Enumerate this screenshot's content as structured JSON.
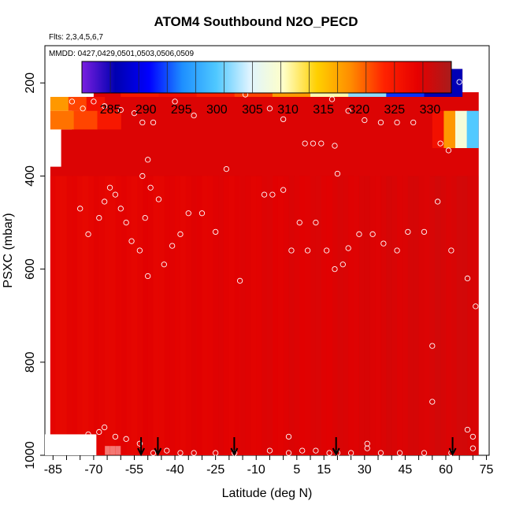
{
  "chart_data": {
    "type": "heatmap",
    "title": "ATOM4 Southbound N2O_PECD",
    "subtitle_flights": "Flts: 2,3,4,5,6,7",
    "subtitle_dates": "MMDD: 0427,0429,0501,0503,0506,0509",
    "xlabel": "Latitude (deg N)",
    "ylabel": "PSXC (mbar)",
    "xlim": [
      -88,
      76
    ],
    "ylim": [
      1000,
      120
    ],
    "x_ticks": [
      -85,
      -70,
      -55,
      -40,
      -25,
      -10,
      5,
      15,
      30,
      45,
      60,
      75
    ],
    "y_ticks": [
      200,
      400,
      600,
      800,
      1000
    ],
    "colorbar": {
      "range": [
        281,
        333
      ],
      "ticks": [
        285,
        290,
        295,
        300,
        305,
        310,
        315,
        320,
        325,
        330
      ],
      "colors": [
        "#7a1fe0",
        "#0000b0",
        "#0000ff",
        "#1e90ff",
        "#4fc8ff",
        "#dff4ff",
        "#ffffc8",
        "#ffd000",
        "#ff8c00",
        "#ff2200",
        "#e60000",
        "#a81c1c"
      ]
    },
    "column_shading": {
      "note": "each column: [lat_left, lat_right, pressure_top, pressure_bottom]",
      "columns": [
        [
          -86,
          -82,
          380,
          1000
        ],
        [
          -82,
          -78,
          300,
          1000
        ],
        [
          -78,
          -74,
          260,
          1000
        ],
        [
          -74,
          -70,
          230,
          1000
        ],
        [
          -70,
          -66,
          200,
          1000
        ],
        [
          -66,
          -60,
          190,
          980
        ],
        [
          -60,
          -40,
          170,
          1000
        ],
        [
          -40,
          0,
          170,
          1000
        ],
        [
          0,
          40,
          170,
          1000
        ],
        [
          40,
          66,
          170,
          1000
        ],
        [
          66,
          72,
          220,
          1000
        ]
      ]
    },
    "upper_levels": {
      "note": "gradient bands near top; values in ppb",
      "band_200": {
        "p": [
          170,
          230
        ],
        "lat_left": -60,
        "lat_right": 66,
        "values": [
          325,
          326,
          324,
          322,
          318,
          310,
          302,
          292,
          286
        ]
      },
      "band_left_top": {
        "p": [
          230,
          260
        ],
        "lat_left": -86,
        "lat_right": -66,
        "values": [
          318,
          322,
          326
        ]
      },
      "band_left_mid": {
        "p": [
          260,
          300
        ],
        "lat_left": -86,
        "lat_right": -60,
        "values": [
          320,
          322,
          325
        ]
      },
      "band_right": {
        "p": [
          260,
          340
        ],
        "lat_left": 55,
        "lat_right": 72,
        "values": [
          326,
          318,
          308,
          300
        ]
      }
    },
    "bulk_value": 329,
    "samples": [
      [
        -61,
        205
      ],
      [
        -55,
        198
      ],
      [
        -47,
        205
      ],
      [
        -40,
        240
      ],
      [
        -33,
        270
      ],
      [
        -22,
        210
      ],
      [
        -17,
        210
      ],
      [
        -14,
        225
      ],
      [
        -5,
        255
      ],
      [
        0,
        278
      ],
      [
        8,
        330
      ],
      [
        11,
        330
      ],
      [
        14,
        330
      ],
      [
        18,
        235
      ],
      [
        24,
        260
      ],
      [
        30,
        280
      ],
      [
        36,
        285
      ],
      [
        42,
        285
      ],
      [
        48,
        285
      ],
      [
        58,
        330
      ],
      [
        61,
        345
      ],
      [
        65,
        198
      ],
      [
        -78,
        240
      ],
      [
        -74,
        255
      ],
      [
        -70,
        240
      ],
      [
        -66,
        250
      ],
      [
        -60,
        258
      ],
      [
        -55,
        265
      ],
      [
        -52,
        285
      ],
      [
        -48,
        285
      ],
      [
        -75,
        470
      ],
      [
        -72,
        525
      ],
      [
        -68,
        490
      ],
      [
        -66,
        455
      ],
      [
        -64,
        425
      ],
      [
        -62,
        440
      ],
      [
        -60,
        470
      ],
      [
        -58,
        500
      ],
      [
        -56,
        540
      ],
      [
        -53,
        560
      ],
      [
        -51,
        490
      ],
      [
        -49,
        425
      ],
      [
        -46,
        450
      ],
      [
        -44,
        590
      ],
      [
        -41,
        550
      ],
      [
        -38,
        525
      ],
      [
        -35,
        480
      ],
      [
        -30,
        480
      ],
      [
        -25,
        520
      ],
      [
        -21,
        385
      ],
      [
        -16,
        625
      ],
      [
        -7,
        440
      ],
      [
        -4,
        440
      ],
      [
        0,
        430
      ],
      [
        3,
        560
      ],
      [
        6,
        500
      ],
      [
        9,
        560
      ],
      [
        12,
        500
      ],
      [
        16,
        560
      ],
      [
        19,
        600
      ],
      [
        22,
        590
      ],
      [
        24,
        555
      ],
      [
        28,
        525
      ],
      [
        33,
        525
      ],
      [
        37,
        545
      ],
      [
        42,
        560
      ],
      [
        46,
        520
      ],
      [
        52,
        520
      ],
      [
        57,
        455
      ],
      [
        62,
        560
      ],
      [
        68,
        620
      ],
      [
        71,
        680
      ],
      [
        55,
        765
      ],
      [
        55,
        885
      ],
      [
        -50,
        615
      ],
      [
        -52,
        400
      ],
      [
        -50,
        365
      ],
      [
        -72,
        955
      ],
      [
        -68,
        950
      ],
      [
        -66,
        940
      ],
      [
        -62,
        960
      ],
      [
        -58,
        965
      ],
      [
        -53,
        975
      ],
      [
        -48,
        995
      ],
      [
        -43,
        990
      ],
      [
        -38,
        995
      ],
      [
        -33,
        995
      ],
      [
        -25,
        995
      ],
      [
        -18,
        995
      ],
      [
        -5,
        990
      ],
      [
        2,
        960
      ],
      [
        2,
        995
      ],
      [
        7,
        990
      ],
      [
        12,
        990
      ],
      [
        17,
        995
      ],
      [
        20,
        995
      ],
      [
        25,
        995
      ],
      [
        31,
        975
      ],
      [
        31,
        985
      ],
      [
        36,
        995
      ],
      [
        43,
        995
      ],
      [
        52,
        995
      ],
      [
        62,
        995
      ],
      [
        68,
        945
      ],
      [
        70,
        960
      ],
      [
        70,
        985
      ],
      [
        19,
        335
      ],
      [
        20,
        395
      ]
    ],
    "profile_markers_lat": [
      -52.5,
      -46.3,
      -18.1,
      19.5,
      62.5
    ]
  }
}
